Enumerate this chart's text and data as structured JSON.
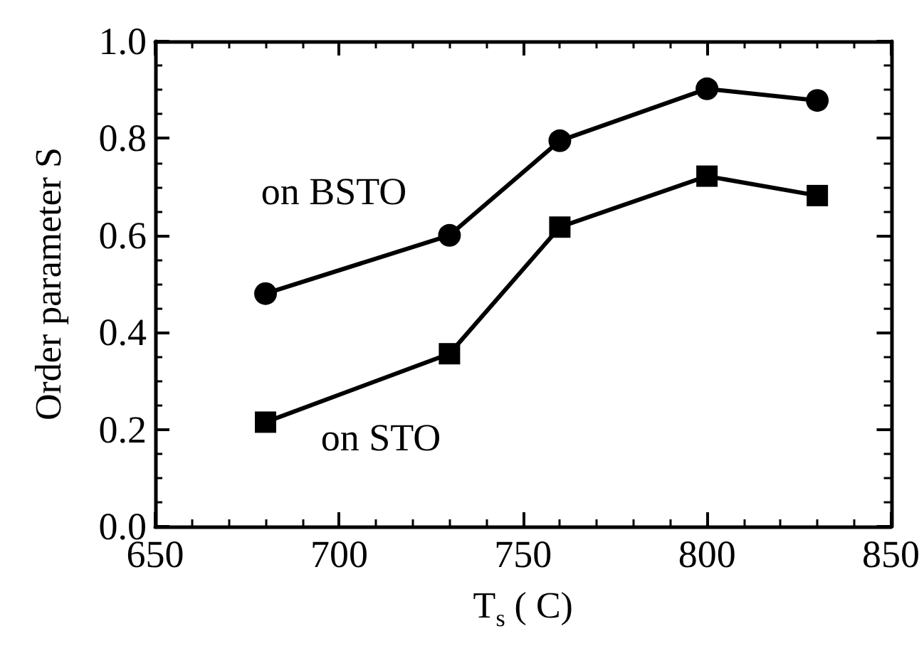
{
  "chart_data": {
    "type": "line",
    "xlabel": "T$_{s}$ ( C)",
    "ylabel": "Order parameter S",
    "xlim": [
      650,
      850
    ],
    "xticks": [
      650,
      700,
      750,
      800,
      850
    ],
    "ylim": [
      0,
      1
    ],
    "yticks": [
      {
        "value": 0,
        "label": "0.0"
      },
      {
        "value": 0.2,
        "label": "0.2"
      },
      {
        "value": 0.4,
        "label": "0.4"
      },
      {
        "value": 0.6,
        "label": "0.6"
      },
      {
        "value": 0.8,
        "label": "0.8"
      },
      {
        "value": 1,
        "label": "1.0"
      }
    ],
    "grid": false,
    "legend": false,
    "line_style": "solid",
    "series": [
      {
        "name": "on BSTO",
        "color": "#000000",
        "marker": "circle",
        "x": [
          680,
          730,
          760,
          800,
          830
        ],
        "values": [
          0.48,
          0.6,
          0.795,
          0.902,
          0.878
        ]
      },
      {
        "name": "on STO",
        "color": "#000000",
        "marker": "square",
        "x": [
          680,
          730,
          760,
          800,
          830
        ],
        "values": [
          0.215,
          0.356,
          0.617,
          0.722,
          0.682
        ]
      }
    ]
  }
}
